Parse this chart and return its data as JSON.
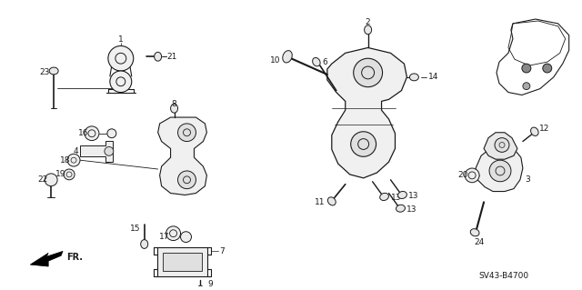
{
  "bg_color": "#ffffff",
  "line_color": "#1a1a1a",
  "text_color": "#1a1a1a",
  "part_code": "SV43-B4700",
  "fontsize": 6.5,
  "figsize": [
    6.4,
    3.19
  ],
  "dpi": 100
}
